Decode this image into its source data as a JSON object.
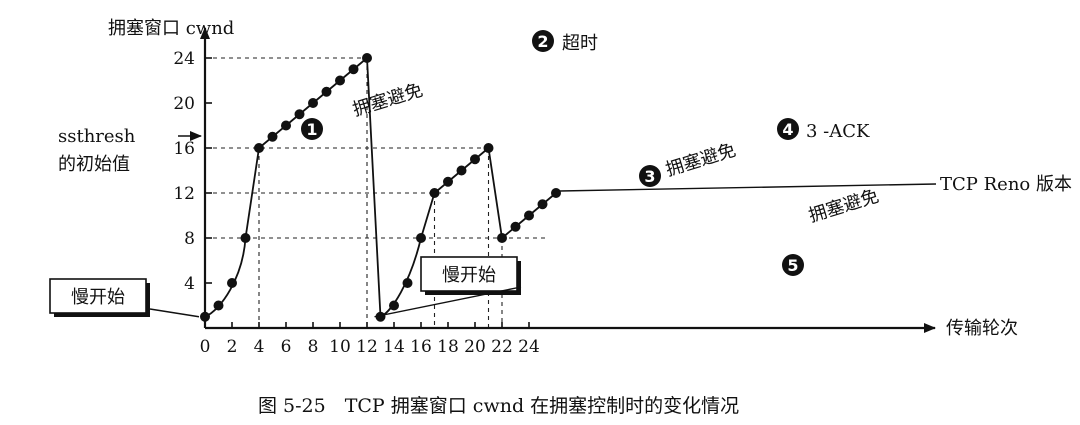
{
  "chart_data": {
    "type": "line",
    "caption": "图 5-25　TCP 拥塞窗口 cwnd 在拥塞控制时的变化情况",
    "ylabel": "拥塞窗口  cwnd",
    "xlabel": "传输轮次",
    "xticks": [
      0,
      2,
      4,
      6,
      8,
      10,
      12,
      14,
      16,
      18,
      20,
      22,
      24
    ],
    "yticks": [
      4,
      8,
      12,
      16,
      20,
      24
    ],
    "xlim": [
      0,
      27
    ],
    "ylim": [
      0,
      26
    ],
    "grid": false,
    "x": [
      0,
      1,
      2,
      3,
      4,
      5,
      6,
      7,
      8,
      9,
      10,
      11,
      12,
      13,
      14,
      15,
      16,
      17,
      18,
      19,
      20,
      21,
      22,
      23,
      24,
      25,
      26
    ],
    "series": [
      {
        "values": [
          1,
          2,
          4,
          8,
          16,
          17,
          18,
          19,
          20,
          21,
          22,
          23,
          24,
          1,
          2,
          4,
          8,
          12,
          13,
          14,
          15,
          16,
          8,
          9,
          10,
          11,
          12
        ]
      }
    ],
    "ssthresh_label": "ssthresh\n的初始值",
    "markers": [
      {
        "num": "1",
        "text": ""
      },
      {
        "num": "2",
        "text": "超时"
      },
      {
        "num": "3",
        "text": ""
      },
      {
        "num": "4",
        "text": "3 -ACK"
      },
      {
        "num": "5",
        "text": ""
      }
    ],
    "phase_labels": [
      "拥塞避免",
      "拥塞避免",
      "拥塞避免"
    ],
    "slow_start_boxes": [
      "慢开始",
      "慢开始"
    ],
    "version_label": "TCP Reno 版本"
  }
}
